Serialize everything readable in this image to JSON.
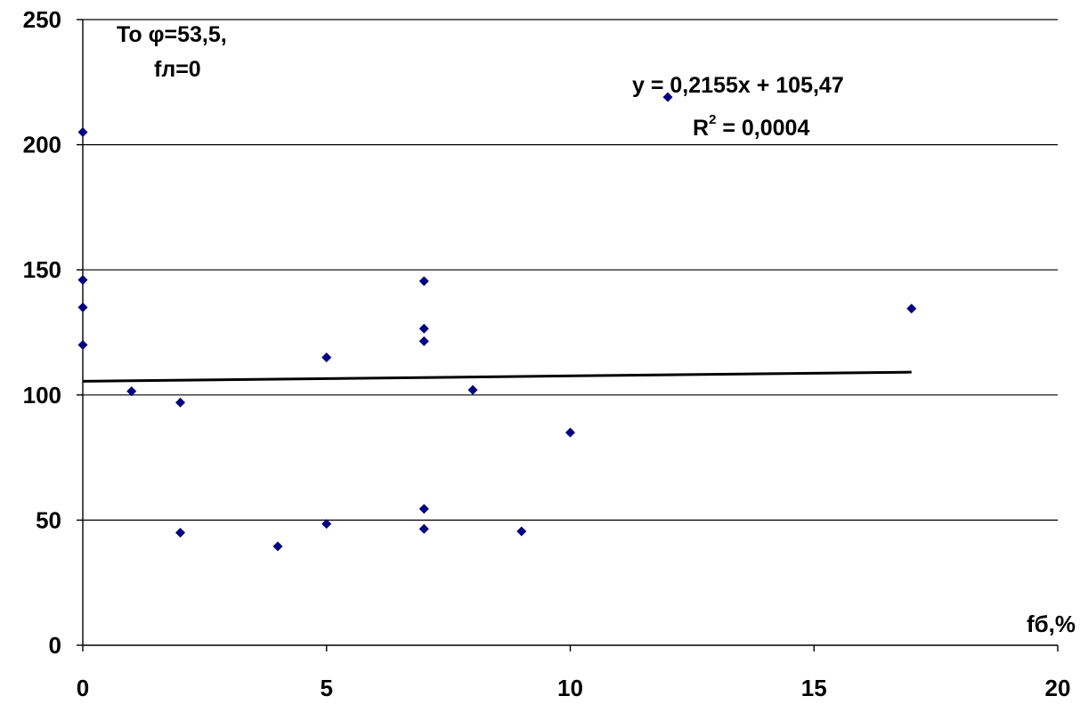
{
  "chart_data": {
    "type": "scatter",
    "title": "",
    "xlabel": "fб,%",
    "ylabel": "",
    "xlim": [
      0,
      20
    ],
    "ylim": [
      0,
      250
    ],
    "x_ticks": [
      "0",
      "5",
      "10",
      "15",
      "20"
    ],
    "y_ticks": [
      "0",
      "50",
      "100",
      "150",
      "200",
      "250"
    ],
    "grid": true,
    "legend": "none",
    "marker": "diamond",
    "marker_color": "#000080",
    "trendline_color": "#000000",
    "annotation": {
      "line1": "To φ=53,5,",
      "line2": "fл=0"
    },
    "trendline": {
      "equation": "y = 0,2155x + 105,47",
      "r2_base": "R",
      "r2_exp": "2",
      "r2_value": " = 0,0004",
      "slope": 0.2155,
      "intercept": 105.47,
      "x_range": [
        0,
        17
      ]
    },
    "points": [
      {
        "x": 0,
        "y": 205
      },
      {
        "x": 0,
        "y": 146
      },
      {
        "x": 0,
        "y": 135
      },
      {
        "x": 0,
        "y": 120
      },
      {
        "x": 1,
        "y": 101.5
      },
      {
        "x": 2,
        "y": 97
      },
      {
        "x": 2,
        "y": 45
      },
      {
        "x": 4,
        "y": 39.5
      },
      {
        "x": 5,
        "y": 115
      },
      {
        "x": 5,
        "y": 48.5
      },
      {
        "x": 7,
        "y": 145.5
      },
      {
        "x": 7,
        "y": 126.5
      },
      {
        "x": 7,
        "y": 121.5
      },
      {
        "x": 7,
        "y": 54.5
      },
      {
        "x": 7,
        "y": 46.5
      },
      {
        "x": 8,
        "y": 102
      },
      {
        "x": 9,
        "y": 45.5
      },
      {
        "x": 10,
        "y": 85
      },
      {
        "x": 12,
        "y": 219
      },
      {
        "x": 17,
        "y": 134.5
      }
    ]
  }
}
